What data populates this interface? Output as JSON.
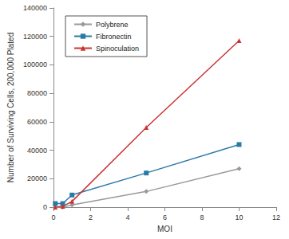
{
  "chart_data": {
    "type": "line",
    "x_label": "MOI",
    "y_label": "Number of Surviving Cells, 200,000 Plated",
    "x": [
      0.1,
      0.5,
      1,
      5,
      10
    ],
    "series": [
      {
        "name": "Polybrene",
        "color": "#999999",
        "marker": "diamond",
        "values": [
          0,
          0,
          1500,
          11000,
          27000
        ]
      },
      {
        "name": "Fibronectin",
        "color": "#2a7aa8",
        "marker": "square",
        "values": [
          2500,
          2500,
          8500,
          24000,
          44000
        ]
      },
      {
        "name": "Spinoculation",
        "color": "#cc3333",
        "marker": "triangle",
        "values": [
          0,
          500,
          4000,
          56000,
          117000
        ]
      }
    ],
    "xlim": [
      0,
      12
    ],
    "xticks": [
      0,
      2,
      4,
      6,
      8,
      10,
      12
    ],
    "ylim": [
      0,
      140000
    ],
    "yticks": [
      0,
      20000,
      40000,
      60000,
      80000,
      100000,
      120000,
      140000
    ],
    "grid": false,
    "legend": "upper left"
  }
}
